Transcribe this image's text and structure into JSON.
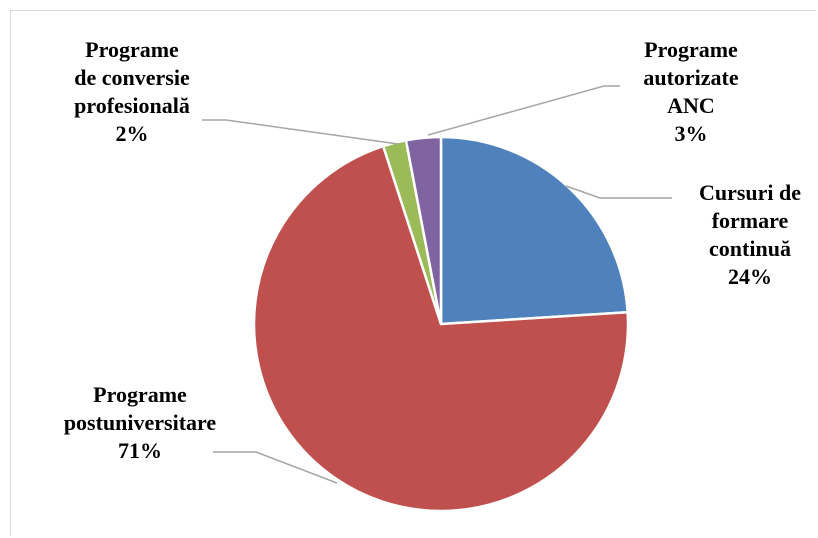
{
  "chart_data": {
    "type": "pie",
    "title": "",
    "legend": "none",
    "slices": [
      {
        "lines": [
          "Cursuri de",
          "formare",
          "continuă"
        ],
        "percent_label": "24%",
        "value": 24,
        "color": "#4f81bd"
      },
      {
        "lines": [
          "Programe",
          "postuniversitare"
        ],
        "percent_label": "71%",
        "value": 71,
        "color": "#c0504d"
      },
      {
        "lines": [
          "Programe",
          "de conversie",
          "profesională"
        ],
        "percent_label": "2%",
        "value": 2,
        "color": "#9bbb59"
      },
      {
        "lines": [
          "Programe",
          "autorizate",
          "ANC"
        ],
        "percent_label": "3%",
        "value": 3,
        "color": "#8064a2"
      }
    ]
  }
}
